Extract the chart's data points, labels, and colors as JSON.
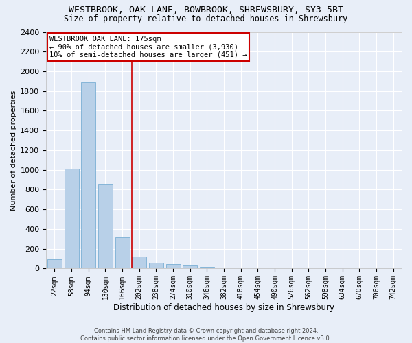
{
  "title": "WESTBROOK, OAK LANE, BOWBROOK, SHREWSBURY, SY3 5BT",
  "subtitle": "Size of property relative to detached houses in Shrewsbury",
  "xlabel": "Distribution of detached houses by size in Shrewsbury",
  "ylabel": "Number of detached properties",
  "bar_color": "#b8d0e8",
  "bar_edge_color": "#7aafd4",
  "background_color": "#e8eef8",
  "grid_color": "#ffffff",
  "categories": [
    "22sqm",
    "58sqm",
    "94sqm",
    "130sqm",
    "166sqm",
    "202sqm",
    "238sqm",
    "274sqm",
    "310sqm",
    "346sqm",
    "382sqm",
    "418sqm",
    "454sqm",
    "490sqm",
    "526sqm",
    "562sqm",
    "598sqm",
    "634sqm",
    "670sqm",
    "706sqm",
    "742sqm"
  ],
  "values": [
    95,
    1010,
    1890,
    860,
    315,
    120,
    57,
    48,
    28,
    18,
    8,
    5,
    3,
    2,
    1,
    1,
    0,
    0,
    0,
    0,
    0
  ],
  "ylim": [
    0,
    2400
  ],
  "yticks": [
    0,
    200,
    400,
    600,
    800,
    1000,
    1200,
    1400,
    1600,
    1800,
    2000,
    2200,
    2400
  ],
  "property_label": "WESTBROOK OAK LANE: 175sqm",
  "annotation_line1": "← 90% of detached houses are smaller (3,930)",
  "annotation_line2": "10% of semi-detached houses are larger (451) →",
  "vline_x_index": 4.55,
  "annotation_box_color": "#ffffff",
  "annotation_box_edge": "#cc0000",
  "vline_color": "#cc0000",
  "footer_line1": "Contains HM Land Registry data © Crown copyright and database right 2024.",
  "footer_line2": "Contains public sector information licensed under the Open Government Licence v3.0."
}
